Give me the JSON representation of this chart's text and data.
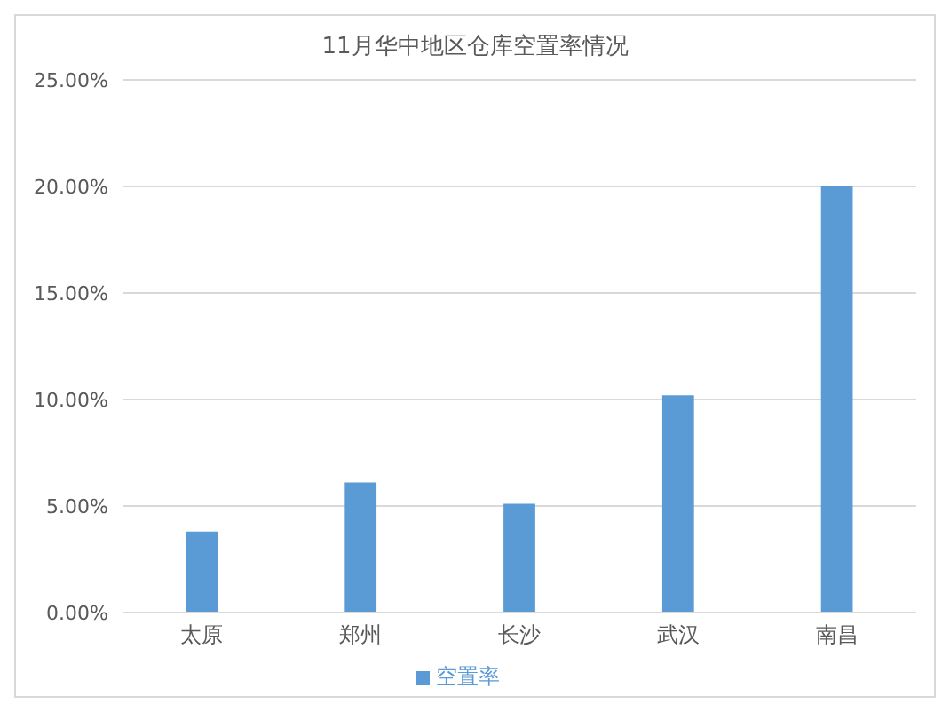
{
  "chart_data": {
    "type": "bar",
    "title": "11月华中地区仓库空置率情况",
    "categories": [
      "太原",
      "郑州",
      "长沙",
      "武汉",
      "南昌"
    ],
    "series": [
      {
        "name": "空置率",
        "color": "#5b9bd5",
        "values": [
          3.8,
          6.1,
          5.1,
          10.2,
          20.0
        ]
      }
    ],
    "ylim": [
      0,
      25
    ],
    "yticks": [
      {
        "value": 0,
        "label": "0.00%"
      },
      {
        "value": 5,
        "label": "5.00%"
      },
      {
        "value": 10,
        "label": "10.00%"
      },
      {
        "value": 15,
        "label": "15.00%"
      },
      {
        "value": 20,
        "label": "20.00%"
      },
      {
        "value": 25,
        "label": "25.00%"
      }
    ],
    "grid": "y",
    "legend": "bottom"
  }
}
